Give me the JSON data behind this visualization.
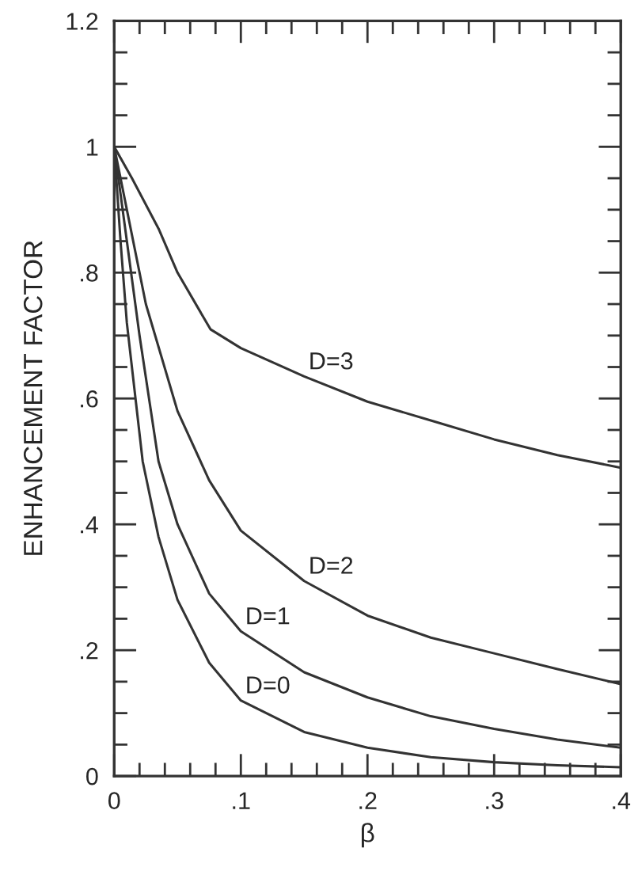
{
  "chart_data": {
    "type": "line",
    "xlabel": "β",
    "ylabel": "ENHANCEMENT FACTOR",
    "xlim": [
      0,
      0.4
    ],
    "ylim": [
      0,
      1.2
    ],
    "xticks": [
      {
        "value": 0,
        "label": "0"
      },
      {
        "value": 0.02,
        "label": null
      },
      {
        "value": 0.04,
        "label": null
      },
      {
        "value": 0.06,
        "label": null
      },
      {
        "value": 0.08,
        "label": null
      },
      {
        "value": 0.1,
        "label": ".1"
      },
      {
        "value": 0.12,
        "label": null
      },
      {
        "value": 0.14,
        "label": null
      },
      {
        "value": 0.16,
        "label": null
      },
      {
        "value": 0.18,
        "label": null
      },
      {
        "value": 0.2,
        "label": ".2"
      },
      {
        "value": 0.22,
        "label": null
      },
      {
        "value": 0.24,
        "label": null
      },
      {
        "value": 0.26,
        "label": null
      },
      {
        "value": 0.28,
        "label": null
      },
      {
        "value": 0.3,
        "label": ".3"
      },
      {
        "value": 0.32,
        "label": null
      },
      {
        "value": 0.34,
        "label": null
      },
      {
        "value": 0.36,
        "label": null
      },
      {
        "value": 0.38,
        "label": null
      },
      {
        "value": 0.4,
        "label": ".4"
      }
    ],
    "yticks": [
      {
        "value": 0,
        "label": "0"
      },
      {
        "value": 0.05,
        "label": null
      },
      {
        "value": 0.1,
        "label": null
      },
      {
        "value": 0.15,
        "label": null
      },
      {
        "value": 0.2,
        "label": ".2"
      },
      {
        "value": 0.25,
        "label": null
      },
      {
        "value": 0.3,
        "label": null
      },
      {
        "value": 0.35,
        "label": null
      },
      {
        "value": 0.4,
        "label": ".4"
      },
      {
        "value": 0.45,
        "label": null
      },
      {
        "value": 0.5,
        "label": null
      },
      {
        "value": 0.55,
        "label": null
      },
      {
        "value": 0.6,
        "label": ".6"
      },
      {
        "value": 0.65,
        "label": null
      },
      {
        "value": 0.7,
        "label": null
      },
      {
        "value": 0.75,
        "label": null
      },
      {
        "value": 0.8,
        "label": ".8"
      },
      {
        "value": 0.85,
        "label": null
      },
      {
        "value": 0.9,
        "label": null
      },
      {
        "value": 0.95,
        "label": null
      },
      {
        "value": 1,
        "label": "1"
      },
      {
        "value": 1.05,
        "label": null
      },
      {
        "value": 1.1,
        "label": null
      },
      {
        "value": 1.15,
        "label": null
      },
      {
        "value": 1.2,
        "label": "1.2"
      }
    ],
    "grid": false,
    "legend": false,
    "marker": "none",
    "line_style": "solid",
    "series": [
      {
        "name": "D=0",
        "color": "#333333",
        "x": [
          0,
          0.005,
          0.01,
          0.0225,
          0.035,
          0.05,
          0.075,
          0.1,
          0.15,
          0.2,
          0.25,
          0.3,
          0.35,
          0.4
        ],
        "values": [
          1,
          0.85,
          0.72,
          0.5,
          0.38,
          0.28,
          0.18,
          0.12,
          0.07,
          0.045,
          0.03,
          0.022,
          0.017,
          0.014
        ]
      },
      {
        "name": "D=1",
        "color": "#333333",
        "x": [
          0,
          0.01,
          0.02,
          0.035,
          0.05,
          0.075,
          0.1,
          0.15,
          0.2,
          0.25,
          0.3,
          0.35,
          0.4
        ],
        "values": [
          1,
          0.85,
          0.7,
          0.5,
          0.4,
          0.29,
          0.23,
          0.165,
          0.125,
          0.095,
          0.075,
          0.058,
          0.045
        ]
      },
      {
        "name": "D=2",
        "color": "#333333",
        "x": [
          0,
          0.01,
          0.025,
          0.05,
          0.075,
          0.1,
          0.15,
          0.2,
          0.25,
          0.3,
          0.35,
          0.4
        ],
        "values": [
          1,
          0.9,
          0.75,
          0.58,
          0.47,
          0.39,
          0.31,
          0.255,
          0.22,
          0.195,
          0.17,
          0.146
        ]
      },
      {
        "name": "D=3",
        "color": "#333333",
        "x": [
          0,
          0.014,
          0.035,
          0.05,
          0.076,
          0.1,
          0.15,
          0.2,
          0.25,
          0.3,
          0.35,
          0.4
        ],
        "values": [
          1,
          0.95,
          0.87,
          0.8,
          0.71,
          0.68,
          0.635,
          0.595,
          0.565,
          0.535,
          0.51,
          0.49
        ]
      }
    ]
  }
}
